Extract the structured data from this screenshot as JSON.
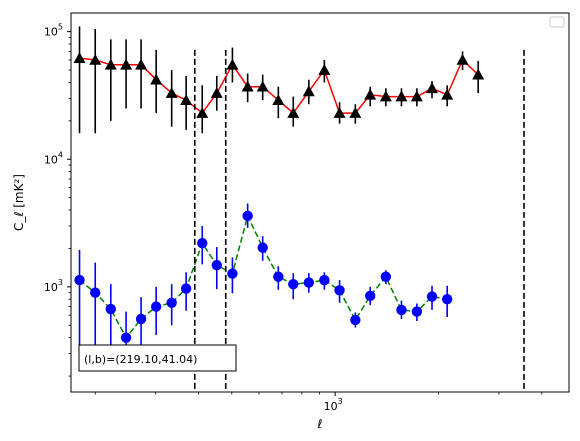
{
  "chart_data": {
    "type": "scatter",
    "title": "",
    "xlabel": "ℓ",
    "ylabel": "C_ℓ  [mK²]",
    "xscale": "log",
    "yscale": "log",
    "xlim": [
      170,
      4800
    ],
    "ylim": [
      150,
      140000
    ],
    "x_ticks": [
      {
        "value": 1000,
        "base": "10",
        "exp": "3"
      }
    ],
    "y_ticks": [
      {
        "value": 1000,
        "base": "10",
        "exp": "3"
      },
      {
        "value": 10000,
        "base": "10",
        "exp": "4"
      },
      {
        "value": 100000,
        "base": "10",
        "exp": "5"
      }
    ],
    "legend": {
      "placement": "top-right",
      "entries": []
    },
    "annotation": {
      "text": "(l,b)=(219.10,41.04)",
      "placement": "bottom-left"
    },
    "vlines": [
      {
        "x": 390,
        "y_top": 72000
      },
      {
        "x": 480,
        "y_top": 72000
      },
      {
        "x": 3550,
        "y_top": 72000
      }
    ],
    "x": [
      180,
      200,
      222,
      246,
      272,
      301,
      334,
      368,
      410,
      452,
      502,
      556,
      615,
      683,
      755,
      838,
      930,
      1030,
      1145,
      1265,
      1405,
      1560,
      1730,
      1915,
      2120,
      2350,
      2610,
      2900,
      3200,
      3550,
      3950,
      4380
    ],
    "series": [
      {
        "name": "",
        "color": "#ff0000",
        "marker": "triangle",
        "marker_color": "#000000",
        "error_color": "#000000",
        "linestyle": "solid",
        "values": [
          62000,
          60000,
          55000,
          55000,
          55000,
          42000,
          33000,
          29000,
          23000,
          33000,
          55000,
          37000,
          37000,
          29000,
          23000,
          34000,
          50000,
          23000,
          23000,
          32000,
          31000,
          31000,
          31000,
          36000,
          32000,
          60000,
          46000
        ],
        "x_index_offset": 0,
        "xs": [
          180,
          200,
          222,
          246,
          272,
          301,
          334,
          368,
          410,
          452,
          502,
          556,
          615,
          683,
          755,
          838,
          930,
          1030,
          1145,
          1265,
          1405,
          1560,
          1730,
          1915,
          2120,
          2350,
          2610
        ],
        "err_low": [
          16000,
          16000,
          20000,
          25000,
          25000,
          23000,
          18000,
          17000,
          16000,
          24000,
          40000,
          28000,
          29000,
          21000,
          18000,
          27000,
          40000,
          19000,
          19000,
          26000,
          26000,
          26000,
          26000,
          30000,
          26000,
          50000,
          33000
        ],
        "err_high": [
          110000,
          105000,
          87000,
          87000,
          87000,
          72000,
          50000,
          45000,
          38000,
          45000,
          75000,
          47000,
          46000,
          37000,
          31000,
          42000,
          60000,
          28000,
          27000,
          37000,
          36000,
          36000,
          36000,
          41000,
          38000,
          70000,
          59000
        ]
      },
      {
        "name": "",
        "color": "#008000",
        "marker": "circle",
        "marker_color": "#0000ff",
        "error_color": "#0000ff",
        "linestyle": "dashed",
        "xs": [
          180,
          200,
          222,
          246,
          272,
          301,
          334,
          368,
          410,
          452,
          502,
          556,
          615,
          683,
          755,
          838,
          930,
          1030,
          1145,
          1265,
          1405,
          1560,
          1730,
          1915,
          2120,
          2350,
          2610
        ],
        "values": [
          1130,
          900,
          670,
          400,
          560,
          700,
          750,
          970,
          2200,
          1480,
          1270,
          3600,
          2030,
          1200,
          1050,
          1080,
          1130,
          940,
          550,
          850,
          1200,
          660,
          640,
          840,
          800,
          0,
          0
        ],
        "err_low": [
          300,
          300,
          250,
          250,
          300,
          420,
          500,
          650,
          1500,
          960,
          890,
          2900,
          1600,
          950,
          800,
          900,
          950,
          750,
          480,
          720,
          1050,
          560,
          540,
          660,
          580,
          0,
          0
        ],
        "err_high": [
          1950,
          1550,
          1050,
          640,
          830,
          1000,
          1050,
          1300,
          3000,
          2050,
          1700,
          4500,
          2500,
          1450,
          1280,
          1280,
          1300,
          1130,
          630,
          1000,
          1350,
          780,
          740,
          1020,
          1020,
          0,
          0
        ]
      }
    ]
  }
}
